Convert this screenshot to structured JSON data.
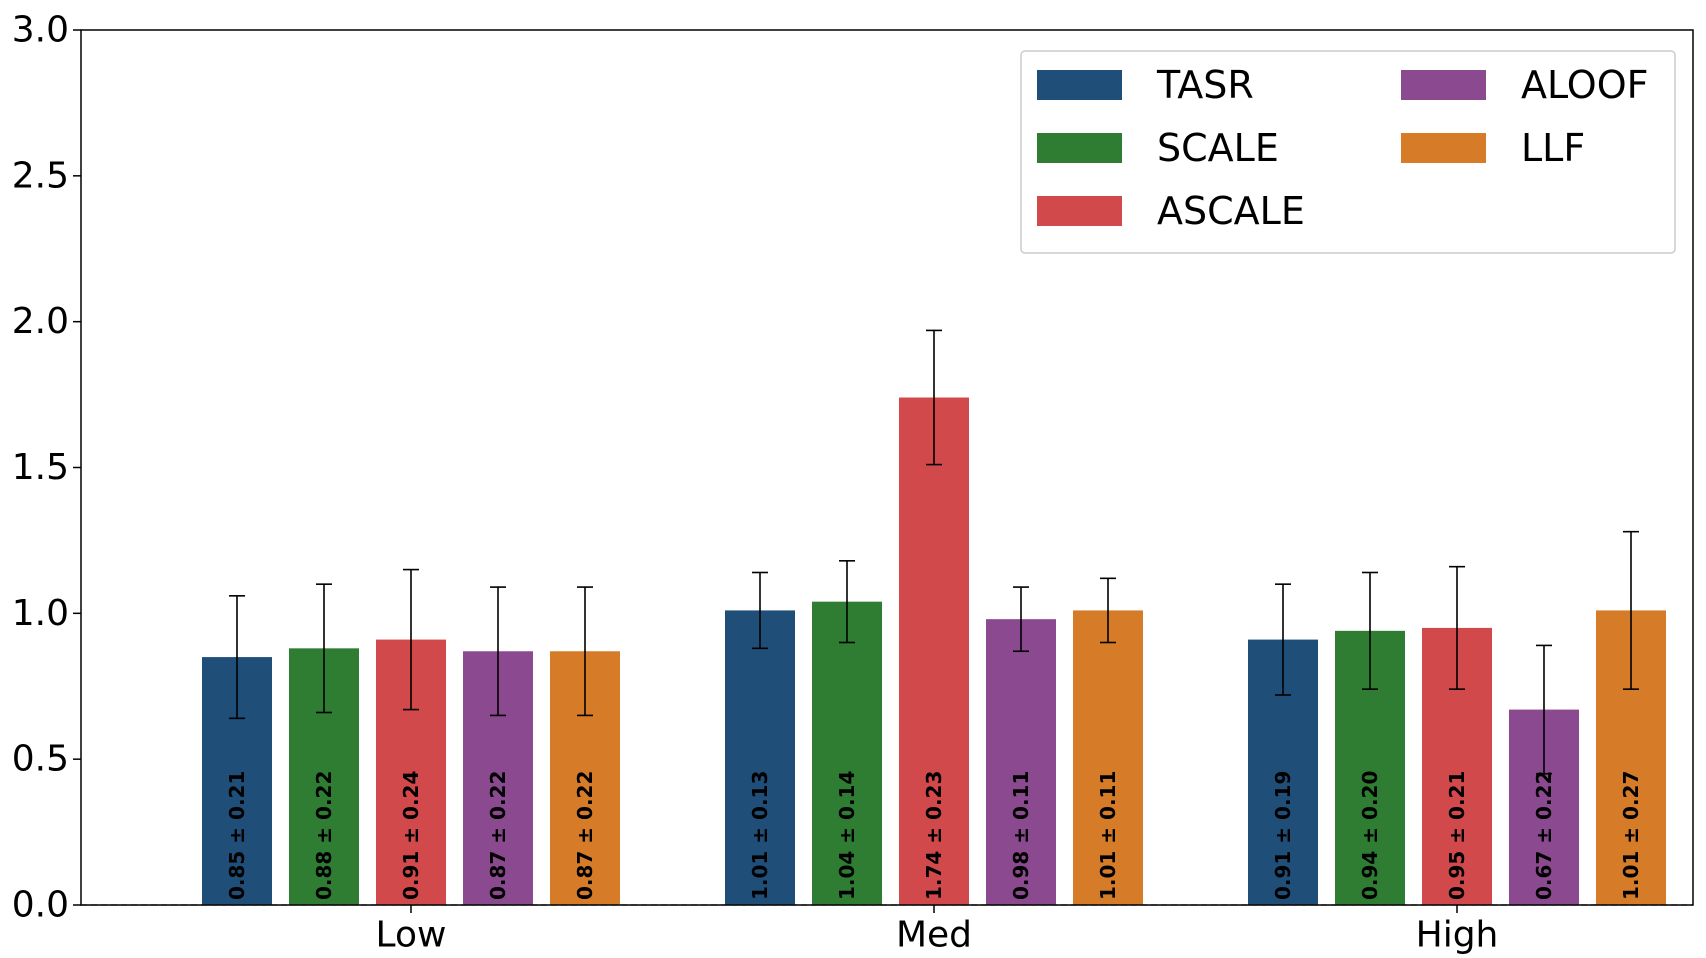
{
  "chart_data": {
    "type": "bar",
    "categories": [
      "Low",
      "Med",
      "High"
    ],
    "ylim": [
      0,
      3.0
    ],
    "yticks": [
      "0.0",
      "0.5",
      "1.0",
      "1.5",
      "2.0",
      "2.5",
      "3.0"
    ],
    "xlabel": "",
    "ylabel": "",
    "grid": false,
    "legend_position": "top-right",
    "baseline_dashed": true,
    "series": [
      {
        "name": "TASR",
        "color": "#1f4e79",
        "values": [
          0.85,
          1.01,
          0.91
        ],
        "errors": [
          0.21,
          0.13,
          0.19
        ],
        "labels": [
          "0.85 ± 0.21",
          "1.01 ± 0.13",
          "0.91 ± 0.19"
        ]
      },
      {
        "name": "SCALE",
        "color": "#2e7d32",
        "values": [
          0.88,
          1.04,
          0.94
        ],
        "errors": [
          0.22,
          0.14,
          0.2
        ],
        "labels": [
          "0.88 ± 0.22",
          "1.04 ± 0.14",
          "0.94 ± 0.20"
        ]
      },
      {
        "name": "ASCALE",
        "color": "#d1494b",
        "values": [
          0.91,
          1.74,
          0.95
        ],
        "errors": [
          0.24,
          0.23,
          0.21
        ],
        "labels": [
          "0.91 ± 0.24",
          "1.74 ± 0.23",
          "0.95 ± 0.21"
        ]
      },
      {
        "name": "ALOOF",
        "color": "#8b4a8f",
        "values": [
          0.87,
          0.98,
          0.67
        ],
        "errors": [
          0.22,
          0.11,
          0.22
        ],
        "labels": [
          "0.87 ± 0.22",
          "0.98 ± 0.11",
          "0.67 ± 0.22"
        ]
      },
      {
        "name": "LLF",
        "color": "#d67c29",
        "values": [
          0.87,
          1.01,
          1.01
        ],
        "errors": [
          0.22,
          0.11,
          0.27
        ],
        "labels": [
          "0.87 ± 0.22",
          "1.01 ± 0.11",
          "1.01 ± 0.27"
        ]
      }
    ]
  }
}
